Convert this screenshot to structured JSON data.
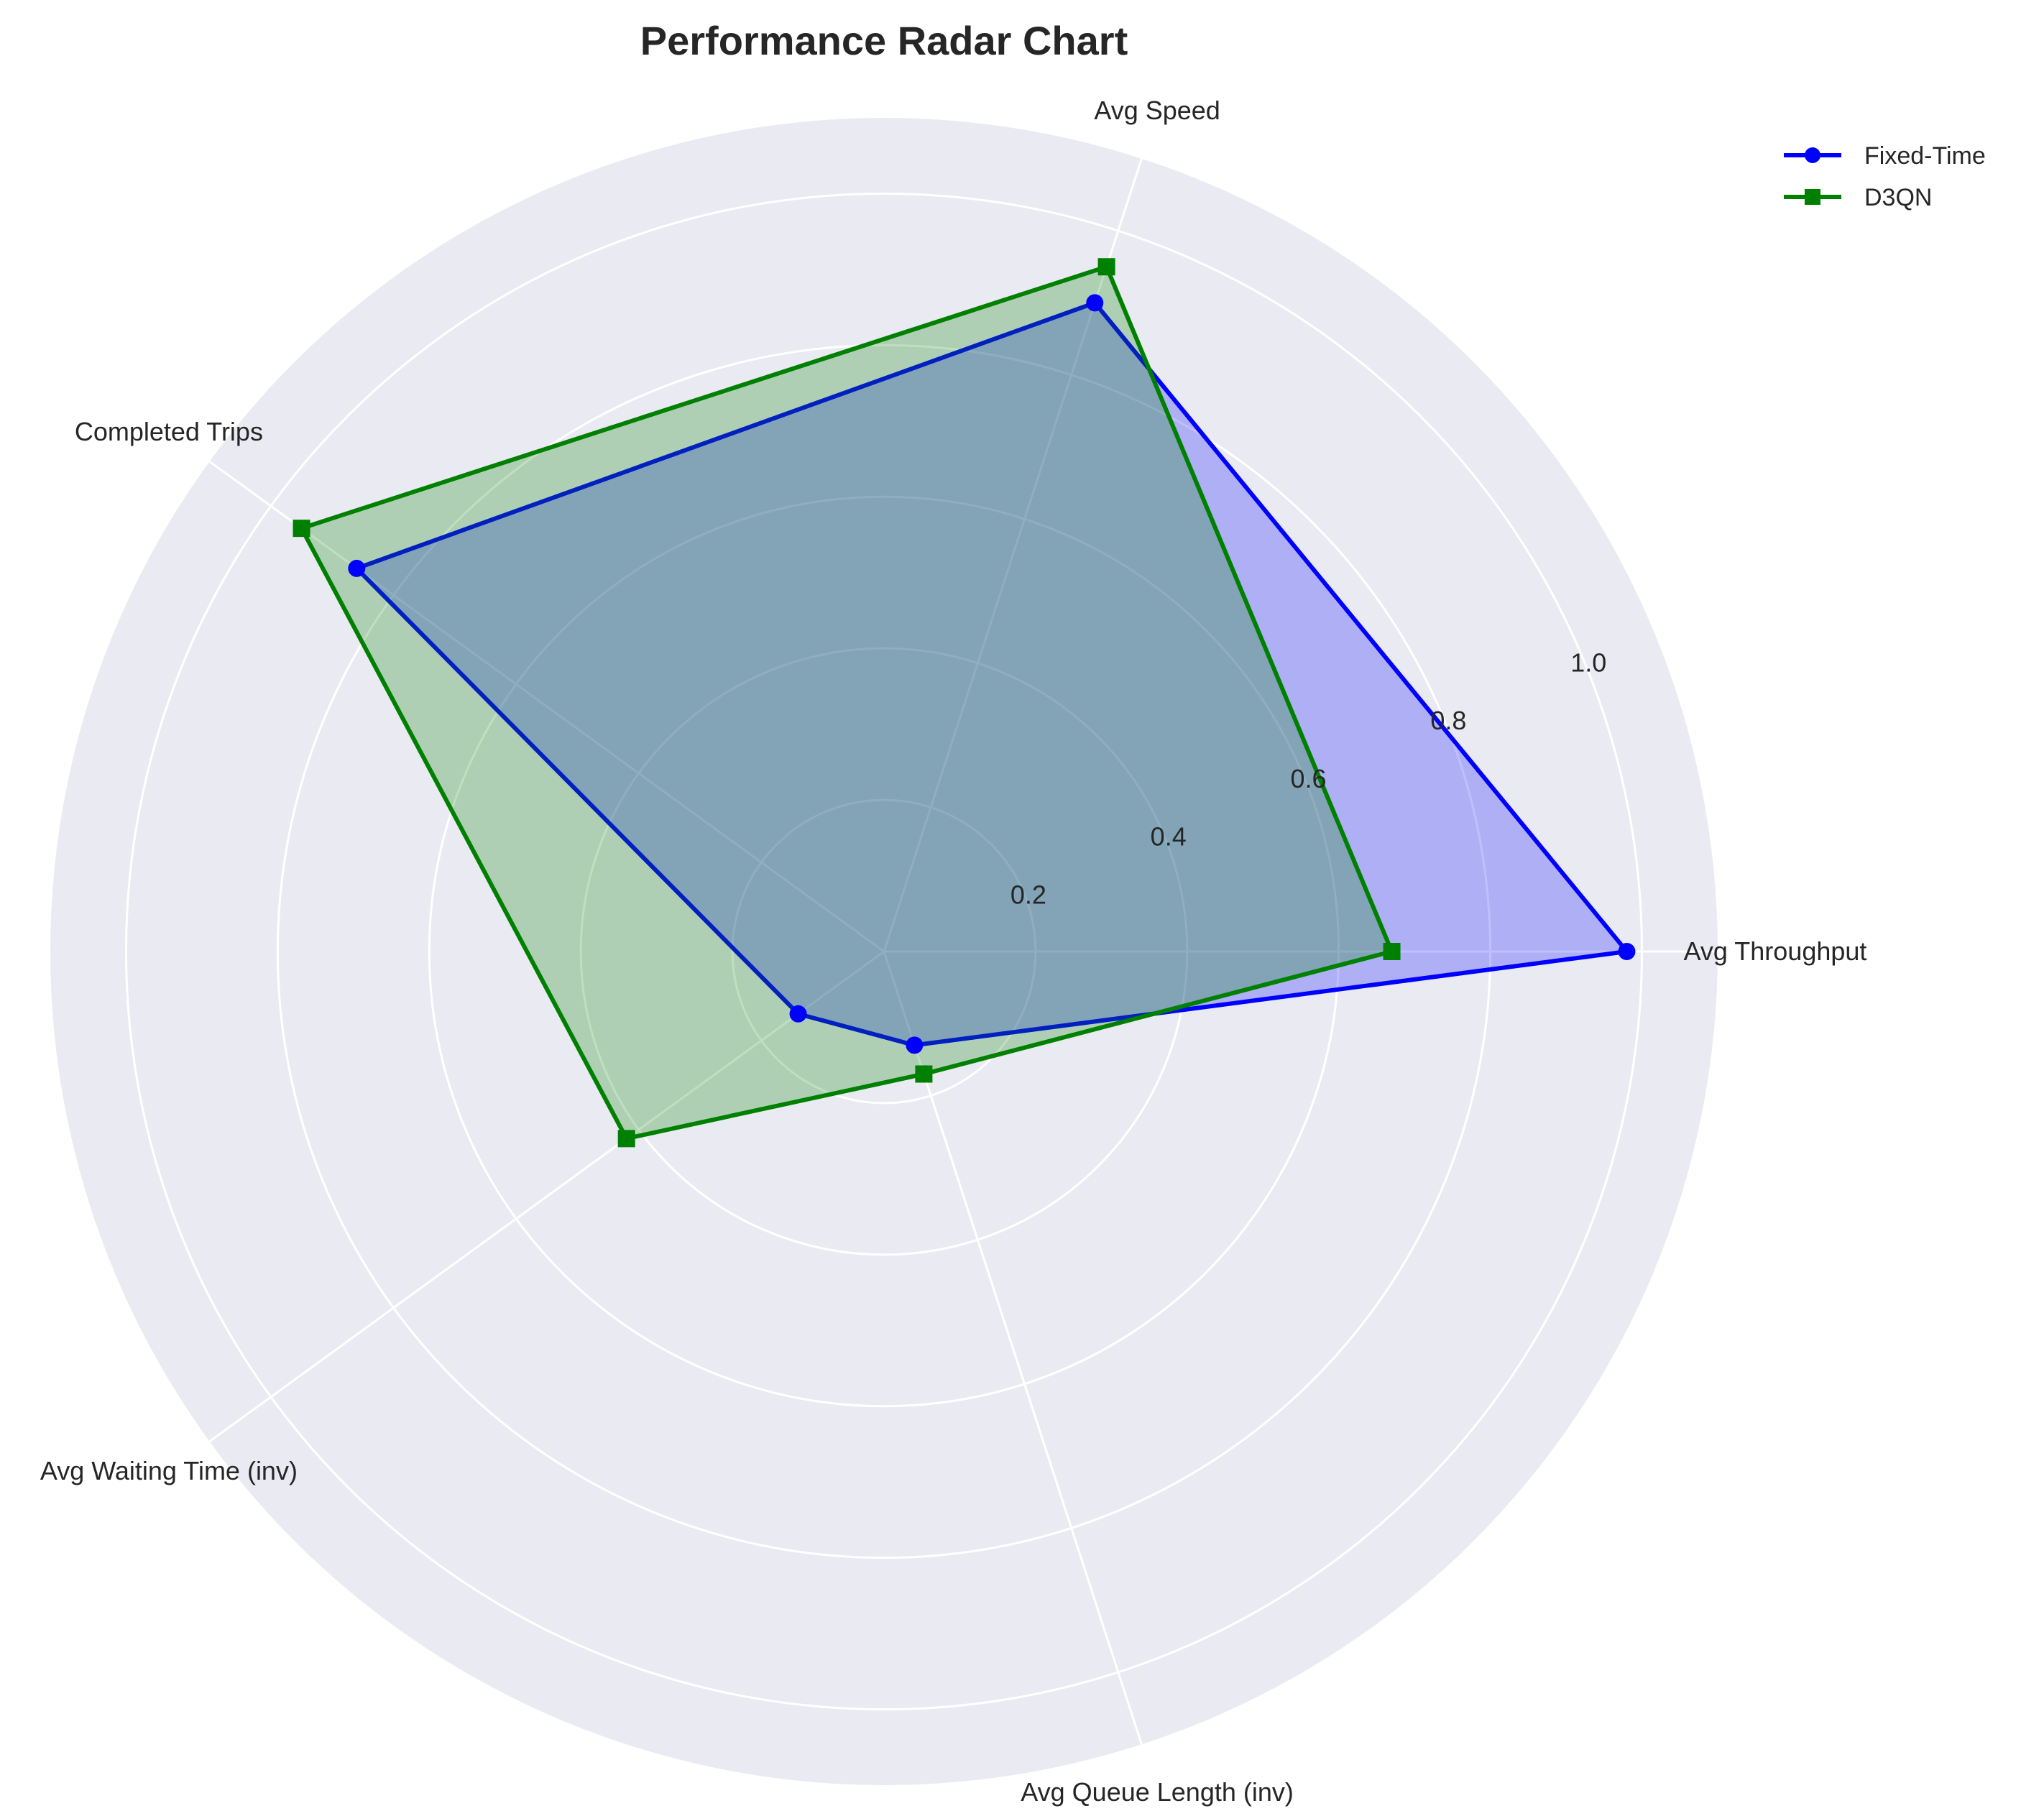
{
  "chart_data": {
    "type": "radar",
    "title": "Performance Radar Chart",
    "axes": [
      "Avg Throughput",
      "Avg Speed",
      "Completed Trips",
      "Avg Waiting Time (inv)",
      "Avg Queue Length (inv)"
    ],
    "rlim": [
      0,
      1.1
    ],
    "rticks": [
      0.2,
      0.4,
      0.6,
      0.8,
      1.0
    ],
    "rtick_labels": [
      "0.2",
      "0.4",
      "0.6",
      "0.8",
      "1.0"
    ],
    "grid": true,
    "legend_position": "top-right",
    "series": [
      {
        "name": "Fixed-Time",
        "color": "#0000ff",
        "fill": "#0000ff",
        "marker": "circle",
        "values": [
          0.98,
          0.9,
          0.86,
          0.14,
          0.13
        ]
      },
      {
        "name": "D3QN",
        "color": "#008000",
        "fill": "#008000",
        "marker": "square",
        "values": [
          0.67,
          0.95,
          0.95,
          0.42,
          0.17
        ]
      }
    ]
  }
}
